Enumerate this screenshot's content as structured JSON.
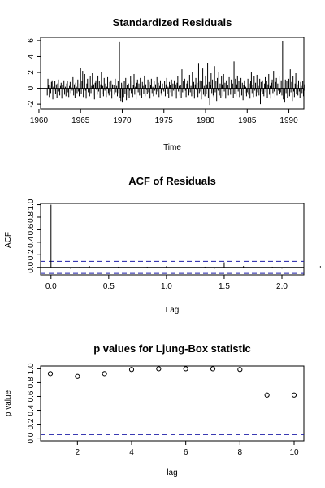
{
  "chart_data": [
    {
      "type": "line",
      "subtype": "vertical-lines",
      "title": "Standardized Residuals",
      "xlabel": "Time",
      "ylabel": "",
      "xlim": [
        1960.2,
        1991.8
      ],
      "ylim": [
        -2.6,
        6.4
      ],
      "xticks": [
        1960,
        1965,
        1970,
        1975,
        1980,
        1985,
        1990
      ],
      "yticks": [
        -2,
        0,
        2,
        4,
        6
      ],
      "start": 1961.0,
      "frequency": 12,
      "values_note_free": true,
      "values": [
        -0.9,
        1.2,
        0.4,
        -1.1,
        0.3,
        -0.6,
        0.8,
        1.0,
        -1.4,
        0.2,
        -0.3,
        0.9,
        -0.7,
        0.5,
        -1.2,
        0.6,
        1.1,
        -0.4,
        -0.9,
        0.3,
        0.7,
        -1.3,
        0.4,
        -0.2,
        1.0,
        -0.8,
        0.2,
        -1.0,
        0.6,
        0.9,
        -0.5,
        -1.1,
        0.3,
        0.8,
        -0.6,
        0.1,
        -0.3,
        1.4,
        -0.9,
        0.5,
        -1.2,
        0.7,
        0.2,
        -0.6,
        1.1,
        -0.4,
        -1.0,
        0.6,
        2.6,
        -0.7,
        0.9,
        2.2,
        -1.1,
        0.4,
        1.8,
        -0.3,
        -1.3,
        0.6,
        1.2,
        -0.5,
        0.8,
        -1.0,
        1.5,
        -0.6,
        0.3,
        1.9,
        -0.9,
        0.5,
        -1.4,
        0.7,
        1.0,
        -0.2,
        -0.8,
        1.6,
        -0.4,
        0.9,
        -1.2,
        0.5,
        2.1,
        -0.7,
        0.3,
        -1.0,
        1.3,
        -0.3,
        0.6,
        -1.1,
        0.2,
        1.4,
        -0.6,
        -0.9,
        0.8,
        -0.4,
        1.0,
        -1.3,
        0.5,
        -0.1,
        0.4,
        -0.8,
        1.2,
        -0.5,
        0.3,
        -1.0,
        0.9,
        -0.6,
        5.8,
        -1.2,
        -1.6,
        0.7,
        -1.8,
        0.5,
        -1.1,
        0.9,
        -0.7,
        1.3,
        -1.5,
        0.4,
        -0.9,
        0.6,
        -1.2,
        -0.3,
        1.5,
        -0.6,
        0.9,
        -1.1,
        0.4,
        1.8,
        -0.8,
        0.2,
        -1.4,
        0.7,
        1.1,
        -0.5,
        0.6,
        -0.9,
        1.3,
        -0.4,
        -1.2,
        0.8,
        0.3,
        -0.7,
        1.6,
        -1.0,
        0.5,
        -0.2,
        -0.7,
        1.1,
        -0.5,
        0.8,
        -1.3,
        0.4,
        1.2,
        -0.6,
        0.2,
        -1.0,
        0.9,
        -0.3,
        0.5,
        -0.8,
        1.4,
        -0.4,
        0.7,
        -1.1,
        0.3,
        1.0,
        -0.6,
        -0.9,
        0.6,
        -0.2,
        -0.4,
        0.9,
        -1.0,
        0.5,
        1.3,
        -0.7,
        0.2,
        -1.2,
        0.8,
        0.4,
        -0.5,
        1.1,
        -1.0,
        0.6,
        -0.3,
        1.0,
        -0.8,
        0.5,
        -1.3,
        0.7,
        1.5,
        -0.4,
        0.3,
        -0.9,
        0.4,
        -1.2,
        2.4,
        -0.5,
        0.9,
        -0.8,
        1.2,
        -0.3,
        -1.1,
        0.6,
        1.0,
        -0.6,
        -0.9,
        1.7,
        -0.5,
        0.3,
        -1.0,
        2.0,
        -0.7,
        0.8,
        -1.3,
        0.5,
        1.3,
        -0.2,
        0.7,
        -1.1,
        3.1,
        -0.6,
        1.0,
        -0.4,
        -1.4,
        0.9,
        2.5,
        -0.8,
        0.3,
        -1.0,
        1.6,
        -0.7,
        0.5,
        3.2,
        -1.2,
        0.8,
        -2.1,
        0.4,
        1.9,
        -0.6,
        1.1,
        -0.9,
        -1.1,
        2.8,
        -0.5,
        0.9,
        -1.6,
        1.3,
        -0.3,
        2.1,
        -0.9,
        0.6,
        -1.2,
        1.5,
        0.5,
        -1.0,
        1.8,
        -0.4,
        0.7,
        -1.3,
        1.0,
        -0.6,
        0.4,
        -0.9,
        1.4,
        -0.2,
        -0.8,
        1.1,
        -0.5,
        0.6,
        -1.2,
        3.4,
        -0.7,
        1.2,
        -1.0,
        0.5,
        1.6,
        -0.4,
        0.9,
        -1.1,
        0.3,
        1.3,
        -0.9,
        0.7,
        -1.5,
        0.4,
        1.0,
        -0.6,
        0.2,
        -1.0,
        -0.5,
        1.2,
        -0.8,
        0.6,
        -1.3,
        0.9,
        2.0,
        -0.6,
        0.4,
        -1.1,
        1.5,
        -0.3,
        0.7,
        -1.0,
        1.7,
        -0.5,
        0.3,
        -0.9,
        1.2,
        -2.0,
        0.8,
        -0.4,
        1.0,
        -0.7,
        -1.0,
        0.6,
        1.4,
        -0.5,
        0.9,
        -1.2,
        0.5,
        1.8,
        -0.8,
        0.3,
        -1.3,
        0.7,
        1.1,
        -0.6,
        2.2,
        -0.4,
        -1.1,
        0.8,
        1.3,
        -0.9,
        0.6,
        -0.3,
        1.6,
        -0.7,
        -0.5,
        1.0,
        -0.9,
        5.9,
        -1.4,
        0.7,
        -1.8,
        1.1,
        -0.6,
        0.9,
        -1.2,
        0.4,
        1.2,
        -1.0,
        2.4,
        -0.5,
        0.8,
        -1.6,
        1.5,
        -0.4,
        -1.1,
        0.6,
        1.9,
        -0.7,
        0.5,
        -0.9,
        1.0,
        -0.4,
        -1.2,
        0.8,
        0.3,
        -0.6,
        0.9,
        -1.0,
        0.5,
        -0.3
      ]
    },
    {
      "type": "bar",
      "subtype": "acf",
      "title": "ACF of Residuals",
      "xlabel": "Lag",
      "ylabel": "ACF",
      "xlim": [
        -0.09,
        2.19
      ],
      "ylim": [
        -0.12,
        1.02
      ],
      "xticks": [
        0.0,
        0.5,
        1.0,
        1.5,
        2.0
      ],
      "yticks": [
        0.0,
        0.2,
        0.4,
        0.6,
        0.8,
        1.0
      ],
      "lag_step": 0.0833333,
      "values": [
        1.0,
        0.0,
        -0.02,
        0.01,
        0.02,
        -0.01,
        -0.01,
        0.01,
        -0.02,
        0.0,
        0.01,
        -0.01,
        0.02,
        -0.01,
        -0.01,
        0.0,
        0.01,
        -0.02,
        0.08,
        -0.01,
        0.02,
        0.0,
        -0.01,
        0.01,
        -0.02,
        -0.01,
        0.01,
        0.0,
        0.02,
        -0.01,
        0.0,
        -0.01,
        0.08,
        0.01,
        -0.01,
        0.0,
        0.01,
        -0.02,
        0.0,
        -0.01,
        0.01,
        -0.02,
        0.0,
        0.01,
        -0.01,
        0.0,
        -0.01,
        0.02,
        0.0,
        -0.01,
        0.04,
        0.0,
        -0.02
      ],
      "confidence_band": [
        -0.095,
        0.095
      ]
    },
    {
      "type": "scatter",
      "title": "p values for Ljung-Box statistic",
      "xlabel": "lag",
      "ylabel": "p value",
      "xlim": [
        0.64,
        10.36
      ],
      "ylim": [
        -0.04,
        1.04
      ],
      "xticks": [
        2,
        4,
        6,
        8,
        10
      ],
      "yticks": [
        0.0,
        0.2,
        0.4,
        0.6,
        0.8,
        1.0
      ],
      "x": [
        1,
        2,
        3,
        4,
        5,
        6,
        7,
        8,
        9,
        10
      ],
      "y": [
        0.93,
        0.89,
        0.93,
        0.99,
        1.0,
        1.0,
        1.0,
        0.99,
        0.62,
        0.62
      ],
      "reference_line": 0.05
    }
  ]
}
